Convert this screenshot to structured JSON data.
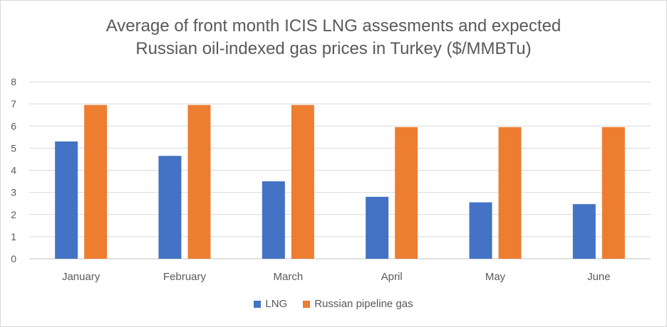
{
  "chart_data": {
    "type": "bar",
    "title": [
      "Average of front month ICIS LNG assesments and expected",
      "Russian oil-indexed gas prices in Turkey ($/MMBTu)"
    ],
    "categories": [
      "January",
      "February",
      "March",
      "April",
      "May",
      "June"
    ],
    "series": [
      {
        "name": "LNG",
        "color": "#4472c4",
        "values": [
          5.3,
          4.65,
          3.5,
          2.8,
          2.55,
          2.47
        ]
      },
      {
        "name": "Russian pipeline gas",
        "color": "#ed7d31",
        "values": [
          6.95,
          6.95,
          6.95,
          5.95,
          5.95,
          5.95
        ]
      }
    ],
    "ylim": [
      0,
      8
    ],
    "yticks": [
      "0",
      "1",
      "2",
      "3",
      "4",
      "5",
      "6",
      "7",
      "8"
    ],
    "grid": true,
    "legend_position": "bottom"
  }
}
